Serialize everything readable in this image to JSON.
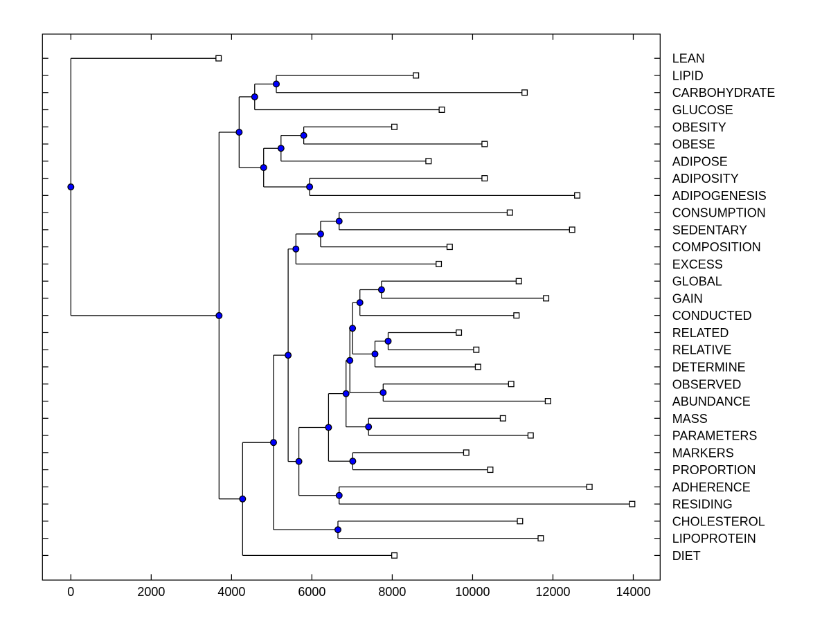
{
  "figure": {
    "background": "#ffffff"
  },
  "chart_data": {
    "type": "dendrogram",
    "subtype": "phylogenetic-tree",
    "orientation": "horizontal-right-labels",
    "title": "",
    "xlabel": "",
    "ylabel": "",
    "grid": false,
    "legend": false,
    "xlim": [
      -707,
      14669
    ],
    "x_ticks": [
      0,
      2000,
      4000,
      6000,
      8000,
      10000,
      12000,
      14000
    ],
    "x_tick_labels": [
      "0",
      "2000",
      "4000",
      "6000",
      "8000",
      "10000",
      "12000",
      "14000"
    ],
    "leaves": [
      {
        "label": "LEAN",
        "x": 3678
      },
      {
        "label": "LIPID",
        "x": 8591
      },
      {
        "label": "CARBOHYDRATE",
        "x": 11295
      },
      {
        "label": "GLUCOSE",
        "x": 9234
      },
      {
        "label": "OBESITY",
        "x": 8053
      },
      {
        "label": "OBESE",
        "x": 10299
      },
      {
        "label": "ADIPOSE",
        "x": 8903
      },
      {
        "label": "ADIPOSITY",
        "x": 10299
      },
      {
        "label": "ADIPOGENESIS",
        "x": 12605
      },
      {
        "label": "CONSUMPTION",
        "x": 10928
      },
      {
        "label": "SEDENTARY",
        "x": 12478
      },
      {
        "label": "COMPOSITION",
        "x": 9430
      },
      {
        "label": "EXCESS",
        "x": 9158
      },
      {
        "label": "GLOBAL",
        "x": 11151
      },
      {
        "label": "GAIN",
        "x": 11830
      },
      {
        "label": "CONDUCTED",
        "x": 11092
      },
      {
        "label": "RELATED",
        "x": 9658
      },
      {
        "label": "RELATIVE",
        "x": 10092
      },
      {
        "label": "DETERMINE",
        "x": 10135
      },
      {
        "label": "OBSERVED",
        "x": 10961
      },
      {
        "label": "ABUNDANCE",
        "x": 11876
      },
      {
        "label": "MASS",
        "x": 10756
      },
      {
        "label": "PARAMETERS",
        "x": 11445
      },
      {
        "label": "MARKERS",
        "x": 9842
      },
      {
        "label": "PROPORTION",
        "x": 10440
      },
      {
        "label": "ADHERENCE",
        "x": 12909
      },
      {
        "label": "RESIDING",
        "x": 13972
      },
      {
        "label": "CHOLESTEROL",
        "x": 11180
      },
      {
        "label": "LIPOPROTEIN",
        "x": 11697
      },
      {
        "label": "DIET",
        "x": 8053
      }
    ],
    "branch_nodes": [
      {
        "id": "n1",
        "x": 0,
        "children": [
          "leaf:0",
          "n2"
        ]
      },
      {
        "id": "n2",
        "x": 3689,
        "children": [
          "n3",
          "n10"
        ]
      },
      {
        "id": "n3",
        "x": 4189,
        "children": [
          "n4",
          "n6"
        ]
      },
      {
        "id": "n4",
        "x": 4576,
        "children": [
          "n5",
          "leaf:3"
        ]
      },
      {
        "id": "n5",
        "x": 5114,
        "children": [
          "leaf:1",
          "leaf:2"
        ]
      },
      {
        "id": "n6",
        "x": 4799,
        "children": [
          "n7",
          "n9"
        ]
      },
      {
        "id": "n7",
        "x": 5231,
        "children": [
          "n8",
          "leaf:6"
        ]
      },
      {
        "id": "n8",
        "x": 5797,
        "children": [
          "leaf:4",
          "leaf:5"
        ]
      },
      {
        "id": "n9",
        "x": 5943,
        "children": [
          "leaf:7",
          "leaf:8"
        ]
      },
      {
        "id": "n10",
        "x": 4275,
        "children": [
          "n11",
          "leaf:29"
        ]
      },
      {
        "id": "n11",
        "x": 5045,
        "children": [
          "n12",
          "n29"
        ]
      },
      {
        "id": "n12",
        "x": 5409,
        "children": [
          "n13",
          "n16"
        ]
      },
      {
        "id": "n13",
        "x": 5602,
        "children": [
          "n14",
          "leaf:12"
        ]
      },
      {
        "id": "n14",
        "x": 6217,
        "children": [
          "n15",
          "leaf:11"
        ]
      },
      {
        "id": "n15",
        "x": 6678,
        "children": [
          "leaf:9",
          "leaf:10"
        ]
      },
      {
        "id": "n16",
        "x": 5676,
        "children": [
          "n17",
          "n28"
        ]
      },
      {
        "id": "n17",
        "x": 6414,
        "children": [
          "n18",
          "n27"
        ]
      },
      {
        "id": "n18",
        "x": 6850,
        "children": [
          "n19",
          "n26"
        ]
      },
      {
        "id": "n19",
        "x": 6945,
        "children": [
          "n20",
          "n25"
        ]
      },
      {
        "id": "n20",
        "x": 7012,
        "children": [
          "n21",
          "n23"
        ]
      },
      {
        "id": "n21",
        "x": 7195,
        "children": [
          "n22",
          "leaf:15"
        ]
      },
      {
        "id": "n22",
        "x": 7733,
        "children": [
          "leaf:13",
          "leaf:14"
        ]
      },
      {
        "id": "n23",
        "x": 7570,
        "children": [
          "n24",
          "leaf:18"
        ]
      },
      {
        "id": "n24",
        "x": 7898,
        "children": [
          "leaf:16",
          "leaf:17"
        ]
      },
      {
        "id": "n25",
        "x": 7774,
        "children": [
          "leaf:19",
          "leaf:20"
        ]
      },
      {
        "id": "n26",
        "x": 7410,
        "children": [
          "leaf:21",
          "leaf:22"
        ]
      },
      {
        "id": "n27",
        "x": 7017,
        "children": [
          "leaf:23",
          "leaf:24"
        ]
      },
      {
        "id": "n28",
        "x": 6678,
        "children": [
          "leaf:25",
          "leaf:26"
        ]
      },
      {
        "id": "n29",
        "x": 6648,
        "children": [
          "leaf:27",
          "leaf:28"
        ]
      }
    ],
    "style": {
      "branch_color": "#000000",
      "axis_color": "#000000",
      "branch_node_marker": "filled-circle",
      "branch_node_fill": "#0000ff",
      "branch_node_edge": "#000000",
      "leaf_marker": "open-square",
      "leaf_marker_fill": "#ffffff",
      "leaf_marker_edge": "#000000",
      "label_color": "#000000"
    }
  }
}
